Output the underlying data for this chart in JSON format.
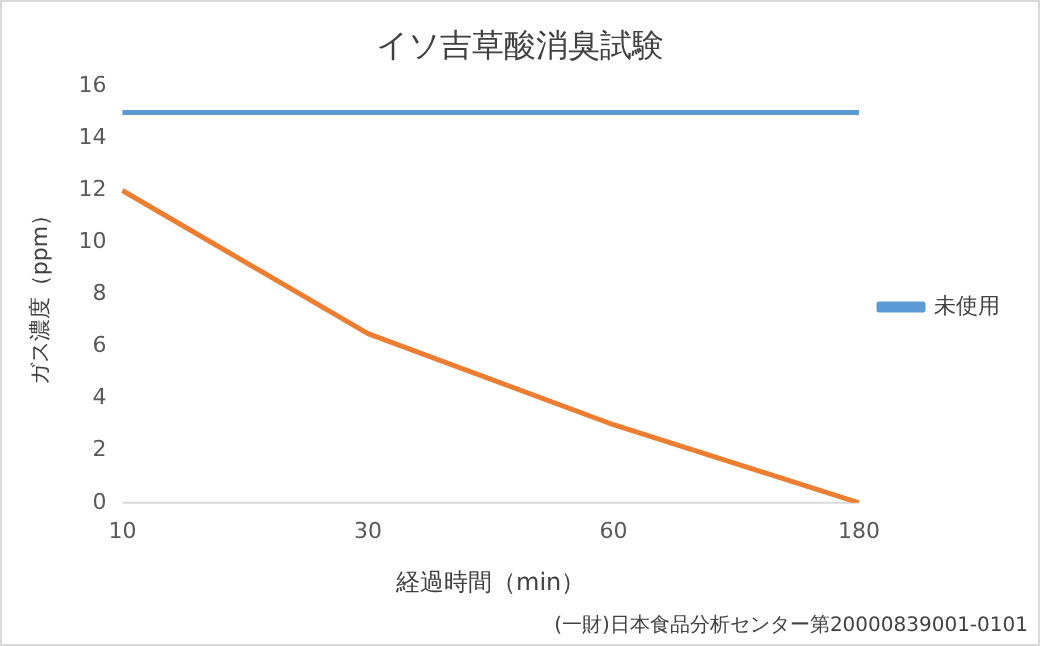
{
  "chart_data": {
    "type": "line",
    "title": "イソ吉草酸消臭試験",
    "xlabel": "経過時間（min）",
    "ylabel": "ガス濃度（ppm）",
    "categories": [
      "10",
      "30",
      "60",
      "180"
    ],
    "series": [
      {
        "name": "未使用",
        "color": "#5b9bd5",
        "values": [
          15,
          15,
          15,
          15
        ]
      },
      {
        "color": "#ed7d31",
        "values": [
          12,
          6.5,
          3,
          0
        ]
      }
    ],
    "ylim": [
      0,
      16
    ],
    "yticks": [
      0,
      2,
      4,
      6,
      8,
      10,
      12,
      14,
      16
    ],
    "grid": false,
    "legend": "right",
    "marker": "none",
    "line_style": "solid",
    "annotations": [
      "(一財)日本食品分析センター第20000839001-0101"
    ]
  }
}
